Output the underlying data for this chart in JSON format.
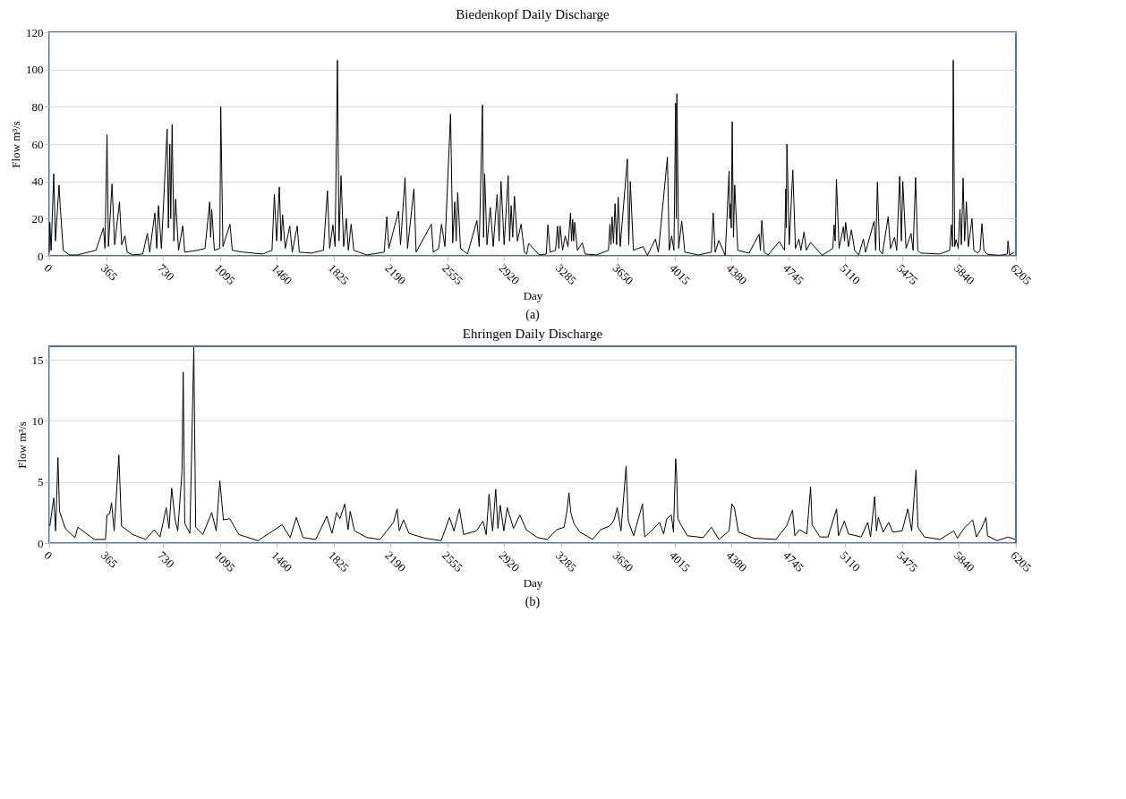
{
  "chart_data": [
    {
      "type": "line",
      "title": "Biedenkopf Daily Discharge",
      "xlabel": "Day",
      "ylabel": "Flow m³/s",
      "xlim": [
        0,
        6205
      ],
      "xticks": [
        0,
        365,
        730,
        1095,
        1460,
        1825,
        2190,
        2555,
        2920,
        3285,
        3650,
        4015,
        4380,
        4745,
        5110,
        5475,
        5840,
        6205
      ],
      "ylim": [
        0,
        120
      ],
      "yticks": [
        0,
        20,
        40,
        60,
        80,
        100,
        120
      ],
      "grid": "y",
      "annotations": [
        "(a)"
      ],
      "series": [
        {
          "color": "#000000",
          "x": [
            0,
            4,
            12,
            29,
            40,
            63,
            71,
            90,
            130,
            181,
            250,
            300,
            348,
            358,
            371,
            380,
            403,
            420,
            451,
            465,
            486,
            500,
            536,
            600,
            630,
            645,
            678,
            690,
            701,
            720,
            757,
            765,
            774,
            780,
            789,
            800,
            811,
            830,
            857,
            870,
            953,
            1000,
            1030,
            1036,
            1043,
            1060,
            1095,
            1101,
            1115,
            1160,
            1175,
            1245,
            1370,
            1430,
            1445,
            1460,
            1477,
            1488,
            1498,
            1515,
            1544,
            1560,
            1592,
            1605,
            1683,
            1760,
            1786,
            1800,
            1821,
            1835,
            1850,
            1860,
            1873,
            1890,
            1907,
            1920,
            1938,
            1955,
            2038,
            2150,
            2167,
            2180,
            2242,
            2255,
            2284,
            2300,
            2341,
            2355,
            2453,
            2465,
            2500,
            2518,
            2540,
            2576,
            2590,
            2603,
            2612,
            2622,
            2640,
            2685,
            2745,
            2760,
            2781,
            2788,
            2795,
            2810,
            2831,
            2850,
            2875,
            2888,
            2900,
            2920,
            2946,
            2955,
            2965,
            2975,
            2986,
            3005,
            3029,
            3050,
            3065,
            3077,
            3146,
            3190,
            3201,
            3215,
            3250,
            3263,
            3271,
            3279,
            3295,
            3312,
            3330,
            3346,
            3353,
            3360,
            3366,
            3373,
            3390,
            3422,
            3440,
            3513,
            3590,
            3599,
            3606,
            3613,
            3622,
            3632,
            3642,
            3652,
            3665,
            3711,
            3720,
            3730,
            3750,
            3811,
            3840,
            3891,
            3910,
            3968,
            3980,
            3995,
            4010,
            4021,
            4025,
            4029,
            4040,
            4060,
            4080,
            4166,
            4250,
            4262,
            4275,
            4298,
            4339,
            4364,
            4368,
            4372,
            4378,
            4384,
            4392,
            4400,
            4420,
            4492,
            4557,
            4565,
            4574,
            4590,
            4614,
            4686,
            4720,
            4728,
            4731,
            4735,
            4750,
            4773,
            4790,
            4812,
            4825,
            4845,
            4860,
            4887,
            4961,
            5030,
            5038,
            5045,
            5053,
            5070,
            5098,
            5105,
            5112,
            5130,
            5149,
            5170,
            5196,
            5226,
            5240,
            5295,
            5305,
            5316,
            5330,
            5348,
            5385,
            5400,
            5426,
            5440,
            5459,
            5470,
            5479,
            5500,
            5532,
            5545,
            5561,
            5575,
            5593,
            5716,
            5780,
            5791,
            5798,
            5803,
            5812,
            5821,
            5835,
            5846,
            5855,
            5866,
            5876,
            5887,
            5900,
            5923,
            5935,
            5960,
            5975,
            5987,
            6000,
            6021,
            6103,
            6150,
            6154,
            6164,
            6195
          ],
          "values": [
            2,
            18,
            3,
            44,
            8,
            38,
            26,
            3,
            0.5,
            0.5,
            2,
            3,
            15,
            4,
            65,
            5,
            38.6,
            6,
            29,
            6,
            10.7,
            2,
            0.5,
            1,
            12,
            2,
            23,
            4,
            27,
            4,
            68,
            15,
            60,
            20,
            70.5,
            8,
            30.5,
            3,
            16,
            2,
            3,
            4,
            29,
            10,
            25,
            3,
            4,
            80,
            5,
            17,
            3,
            2,
            1,
            3,
            33,
            8,
            37,
            8,
            22,
            4,
            16,
            2,
            16,
            2,
            1.5,
            3,
            35,
            4,
            16.6,
            5,
            105,
            8,
            43,
            5,
            20,
            3,
            17,
            3,
            0.5,
            2,
            21,
            4,
            24,
            6,
            42,
            4,
            36,
            2,
            17,
            2,
            4,
            17,
            5,
            76,
            7,
            29,
            8,
            34,
            4,
            1,
            19,
            5,
            81,
            10,
            44,
            6,
            26,
            5,
            33,
            8,
            40,
            6,
            43,
            8,
            27,
            10,
            32,
            8,
            17,
            2,
            1,
            6.7,
            0.5,
            1,
            16.7,
            2,
            3,
            16,
            4,
            16,
            3,
            10.7,
            5,
            23,
            8,
            19.5,
            8,
            18,
            3,
            7,
            1,
            0.5,
            3,
            17,
            6,
            21,
            7,
            28,
            6,
            31.5,
            5,
            52,
            6,
            40,
            3,
            5,
            0.3,
            9,
            2,
            53,
            3,
            10.7,
            3,
            82,
            20,
            87,
            4,
            18.7,
            2,
            0.5,
            2,
            23,
            2,
            8.3,
            0.3,
            45.5,
            20,
            28,
            15,
            72,
            10,
            38,
            3,
            1.5,
            11.7,
            3,
            19,
            2,
            0.5,
            7.7,
            3,
            36,
            15,
            60,
            6,
            46,
            4,
            9,
            3,
            12.8,
            3,
            7.3,
            0.3,
            4,
            16.7,
            8,
            41,
            4,
            15.7,
            8,
            18,
            5,
            14,
            3,
            0.5,
            9,
            2,
            18.7,
            3,
            39.5,
            3,
            1,
            21,
            4,
            10,
            3,
            42.7,
            8,
            40,
            4,
            12,
            3,
            42,
            3,
            1.5,
            1,
            3,
            16.7,
            5,
            105,
            5,
            8.7,
            4,
            25,
            6,
            41.7,
            8,
            29,
            5,
            20,
            3,
            1.5,
            3,
            17.3,
            3,
            0.8,
            0.3,
            1,
            8,
            0.5,
            2
          ]
        }
      ]
    },
    {
      "type": "line",
      "title": "Ehringen Daily Discharge",
      "xlabel": "Day",
      "ylabel": "Flow m³/s",
      "xlim": [
        0,
        6205
      ],
      "xticks": [
        0,
        365,
        730,
        1095,
        1460,
        1825,
        2190,
        2555,
        2920,
        3285,
        3650,
        4015,
        4380,
        4745,
        5110,
        5475,
        5840,
        6205
      ],
      "ylim": [
        0,
        16.1
      ],
      "yticks": [
        0,
        5,
        10,
        15
      ],
      "grid": "y",
      "annotations": [
        "(b)"
      ],
      "series": [
        {
          "color": "#000000",
          "x": [
            4,
            29,
            41,
            56,
            66,
            103,
            165,
            184,
            289,
            361,
            371,
            388,
            400,
            417,
            447,
            464,
            536,
            619,
            674,
            711,
            751,
            769,
            786,
            808,
            825,
            852,
            860,
            870,
            903,
            928,
            940,
            986,
            1043,
            1072,
            1095,
            1118,
            1159,
            1217,
            1340,
            1495,
            1547,
            1586,
            1629,
            1711,
            1782,
            1815,
            1845,
            1866,
            1897,
            1918,
            1932,
            1959,
            2041,
            2124,
            2210,
            2233,
            2247,
            2274,
            2309,
            2412,
            2516,
            2569,
            2598,
            2633,
            2660,
            2742,
            2784,
            2805,
            2823,
            2846,
            2866,
            2880,
            2895,
            2918,
            2940,
            2980,
            3021,
            3062,
            3134,
            3196,
            3259,
            3305,
            3324,
            3336,
            3348,
            3368,
            3407,
            3488,
            3540,
            3599,
            3626,
            3646,
            3670,
            3703,
            3717,
            3751,
            3808,
            3822,
            3873,
            3918,
            3944,
            3964,
            3993,
            4007,
            4021,
            4027,
            4035,
            4055,
            4096,
            4198,
            4250,
            4299,
            4364,
            4382,
            4398,
            4424,
            4522,
            4664,
            4733,
            4771,
            4786,
            4816,
            4863,
            4887,
            4897,
            4948,
            4999,
            5054,
            5066,
            5104,
            5130,
            5212,
            5254,
            5272,
            5298,
            5310,
            5322,
            5353,
            5388,
            5414,
            5475,
            5511,
            5536,
            5564,
            5576,
            5617,
            5718,
            5806,
            5830,
            5871,
            5927,
            5952,
            5988,
            6013,
            6023,
            6084,
            6155,
            6201
          ],
          "values": [
            1.4,
            3.7,
            1,
            7.0,
            2.6,
            1.2,
            0.45,
            1.3,
            0.3,
            0.3,
            2.3,
            2.4,
            3.3,
            1,
            7.2,
            1.4,
            0.7,
            0.3,
            1.1,
            0.5,
            2.9,
            1.2,
            4.5,
            1.9,
            1,
            5.8,
            14.0,
            1.6,
            0.8,
            16.0,
            1.3,
            0.7,
            2.5,
            1,
            5.1,
            1.9,
            2,
            0.7,
            0.2,
            1.5,
            0.45,
            2.1,
            0.45,
            0.3,
            2.2,
            0.8,
            2.5,
            2,
            3.2,
            1.1,
            2.6,
            1,
            0.45,
            0.3,
            1.7,
            2.8,
            1,
            1.9,
            0.8,
            0.4,
            0.2,
            2.1,
            1,
            2.8,
            0.7,
            1,
            1.8,
            0.7,
            4.0,
            1,
            4.4,
            1.2,
            3.1,
            1,
            2.9,
            1.2,
            2.3,
            1.1,
            0.45,
            0.3,
            1.1,
            1.3,
            2.7,
            4.1,
            2.5,
            1.6,
            0.9,
            0.3,
            1.1,
            1.4,
            1.9,
            2.9,
            1,
            6.3,
            1.8,
            0.6,
            3.2,
            0.5,
            1.1,
            1.7,
            0.75,
            2,
            2.3,
            0.9,
            6.9,
            5.7,
            2,
            1.5,
            0.6,
            0.45,
            1.3,
            0.3,
            1,
            3.2,
            2.9,
            0.9,
            0.4,
            0.3,
            1.4,
            2.7,
            0.6,
            1.1,
            0.75,
            4.6,
            1.5,
            0.5,
            0.5,
            2.8,
            0.6,
            1.8,
            0.75,
            0.5,
            1.7,
            0.5,
            3.8,
            1,
            2.1,
            0.9,
            1.7,
            0.9,
            1,
            2.8,
            1,
            6.0,
            1.3,
            0.5,
            0.3,
            1,
            0.4,
            1.2,
            1.9,
            0.5,
            1.3,
            2.1,
            0.6,
            0.2,
            0.5,
            0.3
          ]
        }
      ]
    }
  ]
}
